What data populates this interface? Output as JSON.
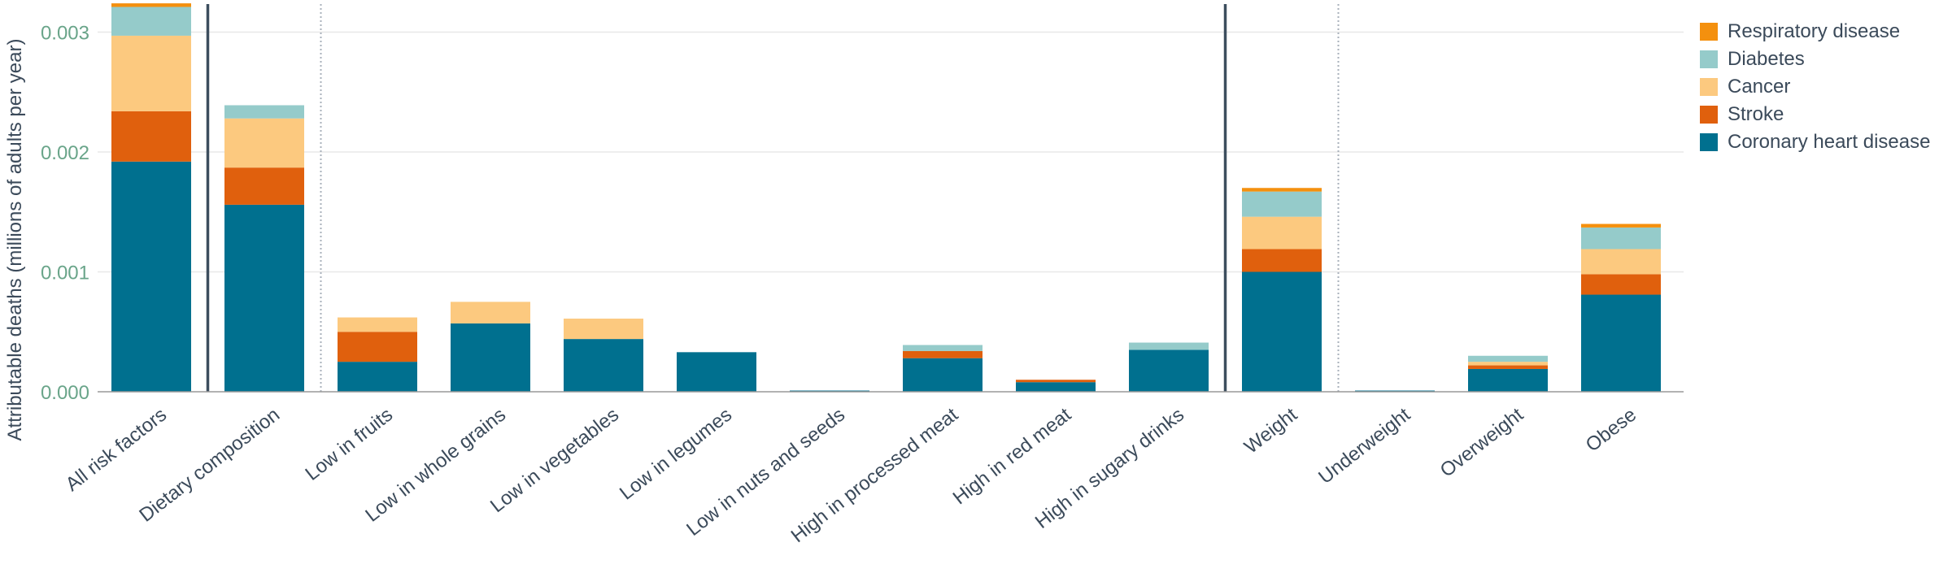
{
  "chart_data": {
    "type": "bar",
    "stacked": true,
    "ylabel": "Attributable deaths (millions of adults per year)",
    "xlabel": "",
    "ylim": [
      0,
      0.0032
    ],
    "yticks": [
      "0.000",
      "0.001",
      "0.002",
      "0.003"
    ],
    "ytick_values": [
      0,
      0.001,
      0.002,
      0.003
    ],
    "grid": true,
    "legend_position": "top-right",
    "categories": [
      "All risk factors",
      "Dietary composition",
      "Low in fruits",
      "Low in whole grains",
      "Low in vegetables",
      "Low in legumes",
      "Low in nuts and seeds",
      "High in processed meat",
      "High in red meat",
      "High in sugary drinks",
      "Weight",
      "Underweight",
      "Overweight",
      "Obese"
    ],
    "group_separators": [
      {
        "after_index": 0,
        "style": "solid"
      },
      {
        "after_index": 1,
        "style": "dotted"
      },
      {
        "after_index": 9,
        "style": "solid"
      },
      {
        "after_index": 10,
        "style": "dotted"
      }
    ],
    "series": [
      {
        "name": "Coronary heart disease",
        "color": "#00708f",
        "values": [
          0.00192,
          0.00156,
          0.00025,
          0.00057,
          0.00044,
          0.00033,
          1e-05,
          0.00028,
          8e-05,
          0.00035,
          0.001,
          1e-05,
          0.00019,
          0.00081
        ]
      },
      {
        "name": "Stroke",
        "color": "#e0600d",
        "values": [
          0.00042,
          0.00031,
          0.00025,
          0,
          0,
          0,
          0,
          6e-05,
          2e-05,
          0,
          0.00019,
          0,
          3e-05,
          0.00017
        ]
      },
      {
        "name": "Cancer",
        "color": "#fcc97f",
        "values": [
          0.00063,
          0.00041,
          0.00012,
          0.00018,
          0.00017,
          0,
          0,
          0,
          0,
          0,
          0.00027,
          0,
          3e-05,
          0.00021
        ]
      },
      {
        "name": "Diabetes",
        "color": "#95cbca",
        "values": [
          0.00024,
          0.00011,
          0,
          0,
          0,
          0,
          0,
          5e-05,
          0,
          6e-05,
          0.00021,
          0,
          5e-05,
          0.00018
        ]
      },
      {
        "name": "Respiratory disease",
        "color": "#f4900e",
        "values": [
          3e-05,
          0,
          0,
          0,
          0,
          0,
          0,
          0,
          0,
          0,
          3e-05,
          0,
          0,
          3e-05
        ]
      }
    ]
  }
}
